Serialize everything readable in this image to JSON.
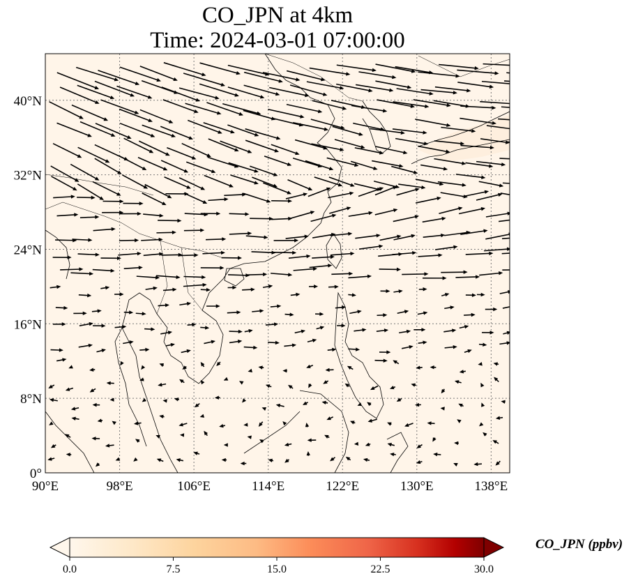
{
  "title": {
    "line1": "CO_JPN at 4km",
    "line2": "Time: 2024-03-01 07:00:00"
  },
  "map": {
    "lon_range": [
      90,
      140
    ],
    "lat_range": [
      0,
      45
    ],
    "lon_ticks": [
      {
        "value": 90,
        "label": "90°E"
      },
      {
        "value": 98,
        "label": "98°E"
      },
      {
        "value": 106,
        "label": "106°E"
      },
      {
        "value": 114,
        "label": "114°E"
      },
      {
        "value": 122,
        "label": "122°E"
      },
      {
        "value": 130,
        "label": "130°E"
      },
      {
        "value": 138,
        "label": "138°E"
      }
    ],
    "lat_ticks": [
      {
        "value": 0,
        "label": "0°"
      },
      {
        "value": 8,
        "label": "8°N"
      },
      {
        "value": 16,
        "label": "16°N"
      },
      {
        "value": 24,
        "label": "24°N"
      },
      {
        "value": 32,
        "label": "32°N"
      },
      {
        "value": 40,
        "label": "40°N"
      }
    ],
    "background_color": "#fff5e9",
    "gridlines": true
  },
  "colorbar": {
    "label": "CO_JPN (ppbv)",
    "min": 0,
    "max": 30,
    "ticks": [
      "0.0",
      "7.5",
      "15.0",
      "22.5",
      "30.0"
    ],
    "colormap": "OrRd",
    "extend": "both"
  }
}
